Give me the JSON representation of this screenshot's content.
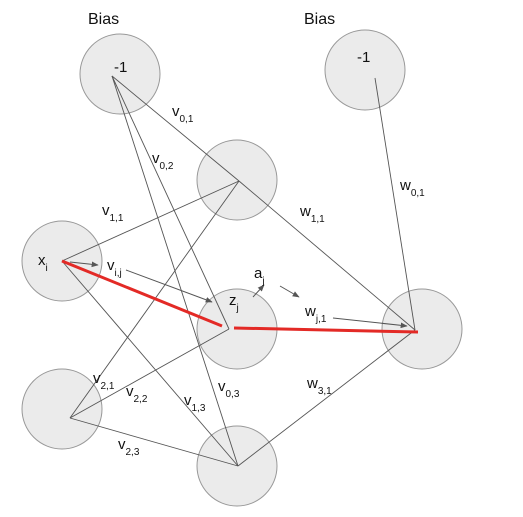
{
  "headers": {
    "bias_left": "Bias",
    "bias_right": "Bias"
  },
  "nodes": {
    "bias_input": "-1",
    "bias_hidden": "-1",
    "input_i": {
      "main": "x",
      "sub": "i"
    },
    "hidden_j": {
      "main": "z",
      "sub": "j"
    }
  },
  "activation": {
    "main": "a",
    "sub": "j"
  },
  "weights": {
    "v01": {
      "main": "v",
      "sub": "0,1"
    },
    "v02": {
      "main": "v",
      "sub": "0,2"
    },
    "v11": {
      "main": "v",
      "sub": "1,1"
    },
    "vij": {
      "main": "v",
      "sub": "i,j"
    },
    "v21": {
      "main": "v",
      "sub": "2,1"
    },
    "v22": {
      "main": "v",
      "sub": "2,2"
    },
    "v13": {
      "main": "v",
      "sub": "1,3"
    },
    "v03": {
      "main": "v",
      "sub": "0,3"
    },
    "v23": {
      "main": "v",
      "sub": "2,3"
    },
    "w01": {
      "main": "w",
      "sub": "0,1"
    },
    "w11": {
      "main": "w",
      "sub": "1,1"
    },
    "wj1": {
      "main": "w",
      "sub": "j,1"
    },
    "w31": {
      "main": "w",
      "sub": "3,1"
    }
  },
  "colors": {
    "highlight": "#e32a26",
    "node_fill": "#ebebeb",
    "node_stroke": "#999999",
    "edge": "#555555"
  }
}
